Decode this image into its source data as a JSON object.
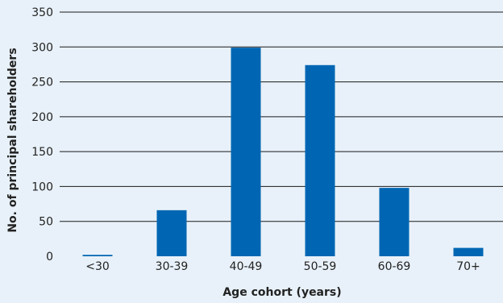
{
  "chart_data": {
    "type": "bar",
    "categories": [
      "<30",
      "30-39",
      "40-49",
      "50-59",
      "60-69",
      "70+"
    ],
    "values": [
      2,
      66,
      299,
      274,
      98,
      12
    ],
    "xlabel": "Age cohort (years)",
    "ylabel": "No. of principal shareholders",
    "ylim": [
      0,
      350
    ],
    "yticks": [
      0,
      50,
      100,
      150,
      200,
      250,
      300,
      350
    ],
    "grid": true,
    "legend": "none",
    "colors": {
      "bar": "#0066b3",
      "background": "#e8f1f9",
      "grid": "#1a1a1a"
    }
  }
}
